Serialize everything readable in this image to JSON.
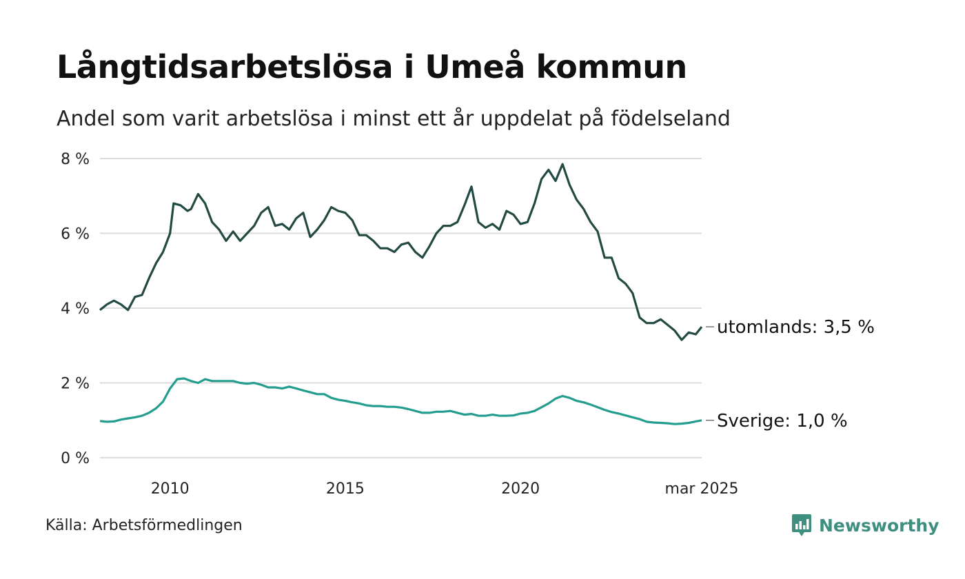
{
  "title": "Långtidsarbetslösa i Umeå kommun",
  "subtitle": "Andel som varit arbetslösa i minst ett år uppdelat på födelseland",
  "source": "Källa: Arbetsförmedlingen",
  "brand": {
    "name": "Newsworthy",
    "icon": "newsworthy-logo-icon",
    "color": "#3f8f80"
  },
  "chart_data": {
    "type": "line",
    "title": "Långtidsarbetslösa i Umeå kommun",
    "subtitle": "Andel som varit arbetslösa i minst ett år uppdelat på födelseland",
    "ylim": [
      0,
      8
    ],
    "yticks": [
      "0 %",
      "2 %",
      "4 %",
      "6 %",
      "8 %"
    ],
    "yticks_values": [
      0,
      2,
      4,
      6,
      8
    ],
    "xlim": [
      2008.0,
      2025.17
    ],
    "xticks": [
      "2010",
      "2015",
      "2020",
      "mar 2025"
    ],
    "xticks_values": [
      2010,
      2015,
      2020,
      2025.17
    ],
    "grid": true,
    "series": [
      {
        "name": "utomlands",
        "end_label": "utomlands: 3,5 %",
        "color": "#234a42",
        "x": [
          2008.0,
          2008.2,
          2008.4,
          2008.6,
          2008.8,
          2009.0,
          2009.2,
          2009.4,
          2009.6,
          2009.8,
          2010.0,
          2010.1,
          2010.3,
          2010.5,
          2010.6,
          2010.8,
          2011.0,
          2011.2,
          2011.4,
          2011.6,
          2011.8,
          2012.0,
          2012.2,
          2012.4,
          2012.6,
          2012.8,
          2013.0,
          2013.2,
          2013.4,
          2013.6,
          2013.8,
          2014.0,
          2014.2,
          2014.4,
          2014.6,
          2014.8,
          2015.0,
          2015.2,
          2015.4,
          2015.6,
          2015.8,
          2016.0,
          2016.2,
          2016.4,
          2016.6,
          2016.8,
          2017.0,
          2017.2,
          2017.4,
          2017.6,
          2017.8,
          2018.0,
          2018.2,
          2018.4,
          2018.6,
          2018.8,
          2019.0,
          2019.2,
          2019.4,
          2019.6,
          2019.8,
          2020.0,
          2020.2,
          2020.4,
          2020.6,
          2020.8,
          2021.0,
          2021.2,
          2021.4,
          2021.6,
          2021.8,
          2022.0,
          2022.2,
          2022.4,
          2022.6,
          2022.8,
          2023.0,
          2023.2,
          2023.4,
          2023.6,
          2023.8,
          2024.0,
          2024.2,
          2024.4,
          2024.6,
          2024.8,
          2025.0,
          2025.17
        ],
        "values": [
          3.95,
          4.1,
          4.2,
          4.1,
          3.95,
          4.3,
          4.35,
          4.8,
          5.2,
          5.5,
          6.0,
          6.8,
          6.75,
          6.6,
          6.65,
          7.05,
          6.8,
          6.3,
          6.1,
          5.8,
          6.05,
          5.8,
          6.0,
          6.2,
          6.55,
          6.7,
          6.2,
          6.25,
          6.1,
          6.4,
          6.55,
          5.9,
          6.1,
          6.35,
          6.7,
          6.6,
          6.55,
          6.35,
          5.95,
          5.95,
          5.8,
          5.6,
          5.6,
          5.5,
          5.7,
          5.75,
          5.5,
          5.35,
          5.65,
          6.0,
          6.2,
          6.2,
          6.3,
          6.75,
          7.25,
          6.3,
          6.15,
          6.25,
          6.1,
          6.6,
          6.5,
          6.25,
          6.3,
          6.8,
          7.45,
          7.7,
          7.4,
          7.85,
          7.3,
          6.9,
          6.65,
          6.3,
          6.05,
          5.35,
          5.35,
          4.8,
          4.65,
          4.4,
          3.75,
          3.6,
          3.6,
          3.7,
          3.55,
          3.4,
          3.15,
          3.35,
          3.3,
          3.5
        ]
      },
      {
        "name": "Sverige",
        "end_label": "Sverige: 1,0 %",
        "color": "#239e8e",
        "x": [
          2008.0,
          2008.2,
          2008.4,
          2008.6,
          2008.8,
          2009.0,
          2009.2,
          2009.4,
          2009.6,
          2009.8,
          2010.0,
          2010.2,
          2010.4,
          2010.6,
          2010.8,
          2011.0,
          2011.2,
          2011.4,
          2011.6,
          2011.8,
          2012.0,
          2012.2,
          2012.4,
          2012.6,
          2012.8,
          2013.0,
          2013.2,
          2013.4,
          2013.6,
          2013.8,
          2014.0,
          2014.2,
          2014.4,
          2014.6,
          2014.8,
          2015.0,
          2015.2,
          2015.4,
          2015.6,
          2015.8,
          2016.0,
          2016.2,
          2016.4,
          2016.6,
          2016.8,
          2017.0,
          2017.2,
          2017.4,
          2017.6,
          2017.8,
          2018.0,
          2018.2,
          2018.4,
          2018.6,
          2018.8,
          2019.0,
          2019.2,
          2019.4,
          2019.6,
          2019.8,
          2020.0,
          2020.2,
          2020.4,
          2020.6,
          2020.8,
          2021.0,
          2021.2,
          2021.4,
          2021.6,
          2021.8,
          2022.0,
          2022.2,
          2022.4,
          2022.6,
          2022.8,
          2023.0,
          2023.2,
          2023.4,
          2023.6,
          2023.8,
          2024.0,
          2024.2,
          2024.4,
          2024.6,
          2024.8,
          2025.0,
          2025.17
        ],
        "values": [
          0.98,
          0.96,
          0.97,
          1.02,
          1.05,
          1.08,
          1.12,
          1.2,
          1.32,
          1.5,
          1.85,
          2.1,
          2.12,
          2.05,
          2.0,
          2.1,
          2.05,
          2.05,
          2.05,
          2.05,
          2.0,
          1.98,
          2.0,
          1.95,
          1.88,
          1.88,
          1.85,
          1.9,
          1.85,
          1.8,
          1.75,
          1.7,
          1.7,
          1.6,
          1.55,
          1.52,
          1.48,
          1.45,
          1.4,
          1.38,
          1.38,
          1.36,
          1.36,
          1.34,
          1.3,
          1.25,
          1.2,
          1.2,
          1.23,
          1.23,
          1.25,
          1.2,
          1.15,
          1.17,
          1.12,
          1.12,
          1.15,
          1.12,
          1.12,
          1.13,
          1.18,
          1.2,
          1.25,
          1.35,
          1.45,
          1.58,
          1.65,
          1.6,
          1.52,
          1.48,
          1.42,
          1.35,
          1.28,
          1.22,
          1.18,
          1.13,
          1.08,
          1.03,
          0.96,
          0.94,
          0.93,
          0.92,
          0.9,
          0.91,
          0.93,
          0.97,
          1.0
        ]
      }
    ]
  }
}
